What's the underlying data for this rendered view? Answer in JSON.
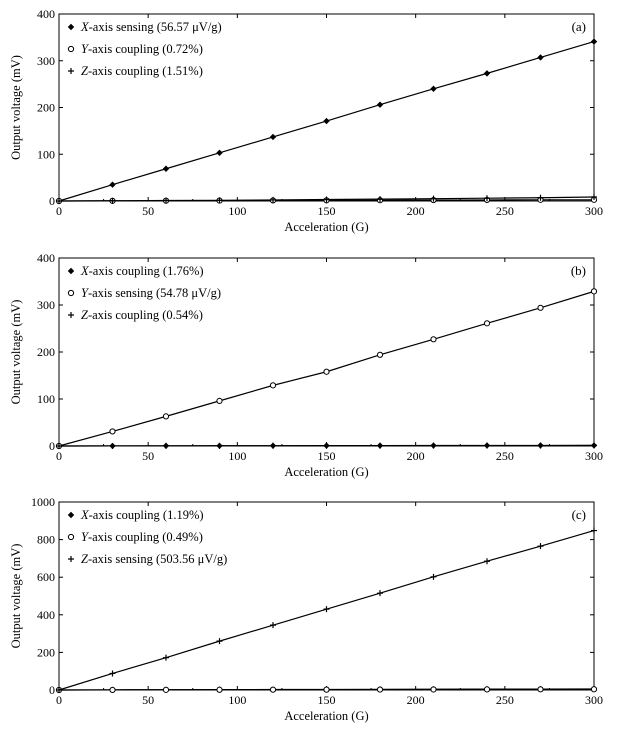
{
  "chart_data": [
    {
      "type": "line",
      "panel_label": "(a)",
      "xlabel": "Acceleration (G)",
      "ylabel": "Output voltage (mV)",
      "xlim": [
        0,
        300
      ],
      "ylim": [
        0,
        400
      ],
      "xticks": [
        0,
        50,
        100,
        150,
        200,
        250,
        300
      ],
      "yticks": [
        0,
        100,
        200,
        300,
        400
      ],
      "grid": false,
      "legend_position": "top-left",
      "x": [
        0,
        30,
        60,
        90,
        120,
        150,
        180,
        210,
        240,
        270,
        300
      ],
      "series": [
        {
          "name_prefix": "X",
          "name_suffix": "-axis sensing (56.57 μV/g)",
          "marker": "diamond",
          "values": [
            0,
            35,
            69,
            103,
            137,
            171,
            206,
            240,
            273,
            307,
            341
          ]
        },
        {
          "name_prefix": "Y",
          "name_suffix": "-axis coupling (0.72%)",
          "marker": "circle",
          "values": [
            0,
            0.3,
            0.6,
            0.9,
            1.2,
            1.4,
            1.7,
            2.0,
            2.3,
            2.5,
            2.5
          ]
        },
        {
          "name_prefix": "Z",
          "name_suffix": "-axis coupling (1.51%)",
          "marker": "plus",
          "values": [
            0,
            0.5,
            1.0,
            1.5,
            2.3,
            3.2,
            4.0,
            5.0,
            6.0,
            7.0,
            8.5
          ]
        }
      ]
    },
    {
      "type": "line",
      "panel_label": "(b)",
      "xlabel": "Acceleration (G)",
      "ylabel": "Output voltage (mV)",
      "xlim": [
        0,
        300
      ],
      "ylim": [
        0,
        400
      ],
      "xticks": [
        0,
        50,
        100,
        150,
        200,
        250,
        300
      ],
      "yticks": [
        0,
        100,
        200,
        300,
        400
      ],
      "grid": false,
      "legend_position": "top-left",
      "x": [
        0,
        30,
        60,
        90,
        120,
        150,
        180,
        210,
        240,
        270,
        300
      ],
      "series": [
        {
          "name_prefix": "X",
          "name_suffix": "-axis coupling (1.76%)",
          "marker": "diamond",
          "values": [
            0,
            0.2,
            0.4,
            0.5,
            0.6,
            0.8,
            0.9,
            1.0,
            1.1,
            1.2,
            1.3
          ]
        },
        {
          "name_prefix": "Y",
          "name_suffix": "-axis sensing (54.78 μV/g)",
          "marker": "circle",
          "values": [
            0,
            31,
            63,
            96,
            129,
            158,
            194,
            227,
            261,
            294,
            329
          ]
        },
        {
          "name_prefix": "Z",
          "name_suffix": "-axis coupling (0.54%)",
          "marker": "plus",
          "values": [
            0,
            0.1,
            0.2,
            0.3,
            0.4,
            0.5,
            0.6,
            0.7,
            0.8,
            0.9,
            1.0
          ]
        }
      ]
    },
    {
      "type": "line",
      "panel_label": "(c)",
      "xlabel": "Acceleration (G)",
      "ylabel": "Output voltage (mV)",
      "xlim": [
        0,
        300
      ],
      "ylim": [
        0,
        1000
      ],
      "xticks": [
        0,
        50,
        100,
        150,
        200,
        250,
        300
      ],
      "yticks": [
        0,
        200,
        400,
        600,
        800,
        1000
      ],
      "grid": false,
      "legend_position": "top-left",
      "x": [
        0,
        30,
        60,
        90,
        120,
        150,
        180,
        210,
        240,
        270,
        300
      ],
      "series": [
        {
          "name_prefix": "X",
          "name_suffix": "-axis coupling (1.19%)",
          "marker": "diamond",
          "values": [
            0,
            1,
            1.5,
            2,
            2.5,
            3,
            3.5,
            4,
            4.5,
            5,
            5.5
          ]
        },
        {
          "name_prefix": "Y",
          "name_suffix": "-axis coupling (0.49%)",
          "marker": "circle",
          "values": [
            0,
            0.4,
            0.8,
            1.2,
            1.6,
            2.0,
            2.4,
            2.8,
            3.2,
            3.6,
            4.0
          ]
        },
        {
          "name_prefix": "Z",
          "name_suffix": "-axis sensing (503.56 μV/g)",
          "marker": "plus",
          "values": [
            0,
            88,
            172,
            260,
            345,
            430,
            515,
            602,
            685,
            765,
            848
          ]
        }
      ]
    }
  ]
}
